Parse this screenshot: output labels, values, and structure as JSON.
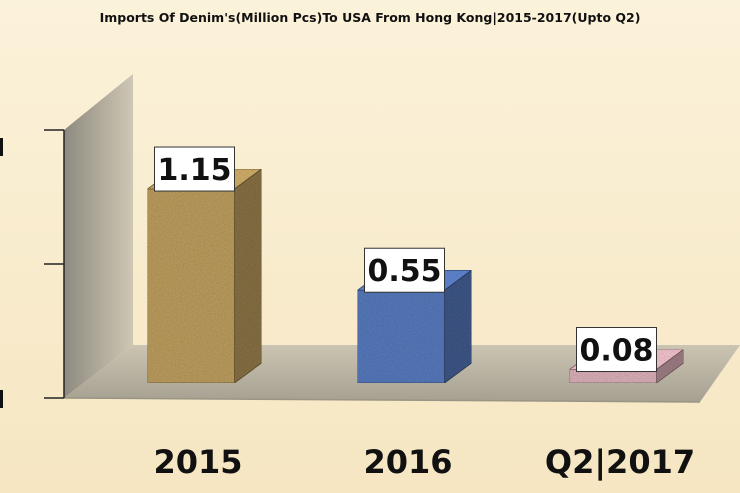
{
  "chart_data": {
    "type": "bar",
    "title": "Imports Of Denim's(Million Pcs)To USA From Hong Kong|2015-2017(Upto Q2)",
    "categories": [
      "2015",
      "2016",
      "Q2|2017"
    ],
    "values": [
      1.15,
      0.55,
      0.08
    ],
    "value_labels": [
      "1.15",
      "0.55",
      "0.08"
    ],
    "ylim": [
      0,
      1.5
    ],
    "colors": [
      "#c4a464",
      "#5b7fc4",
      "#e5b8c0"
    ],
    "grid": false,
    "legend": "none",
    "style": "3d-column"
  }
}
